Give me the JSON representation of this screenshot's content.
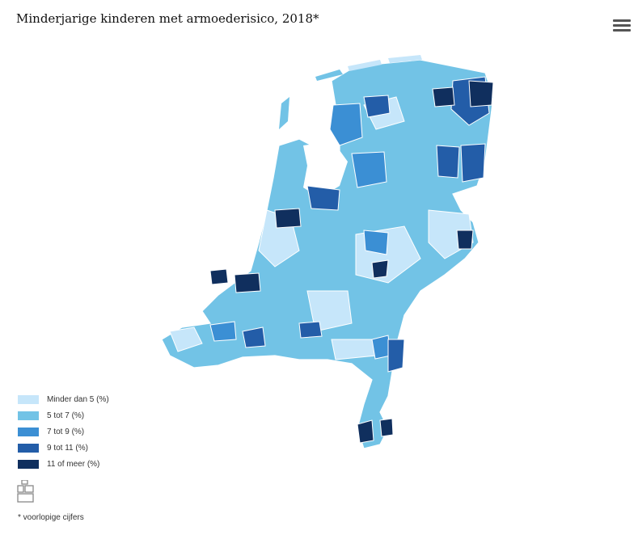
{
  "header": {
    "title": "Minderjarige kinderen met armoederisico, 2018*"
  },
  "menu": {
    "icon": "hamburger-menu-icon"
  },
  "legend": {
    "items": [
      {
        "label": "Minder dan 5 (%)",
        "color": "#c6e6fa"
      },
      {
        "label": "5 tot 7 (%)",
        "color": "#72c3e6"
      },
      {
        "label": "7 tot 9 (%)",
        "color": "#3b8fd4"
      },
      {
        "label": "9 tot 11 (%)",
        "color": "#235da8"
      },
      {
        "label": "11 of meer (%)",
        "color": "#102f5e"
      }
    ]
  },
  "logo": {
    "icon": "cbs-logo-icon"
  },
  "footnote": {
    "text": "* voorlopige cijfers"
  }
}
